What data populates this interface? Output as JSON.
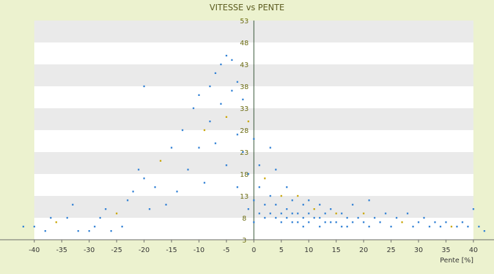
{
  "chart_data": {
    "type": "scatter",
    "title": "VITESSE vs PENTE",
    "xlabel": "Pente [%]",
    "ylabel": "",
    "xlim": [
      -40,
      40
    ],
    "ylim": [
      3,
      53
    ],
    "xticks": [
      -40,
      -35,
      -30,
      -25,
      -20,
      -15,
      -10,
      -5,
      0,
      5,
      10,
      15,
      20,
      25,
      30,
      35,
      40
    ],
    "yticks": [
      3,
      8,
      13,
      18,
      23,
      28,
      33,
      38,
      43,
      48,
      53
    ],
    "grid": "alternating horizontal bands",
    "colors": {
      "background": "#ecf2cf",
      "band": "#eaeaea",
      "plot": "#ffffff",
      "point": "#2e7fd4",
      "point_alt": "#c8a400"
    },
    "series": [
      {
        "points": [
          [
            -42,
            6
          ],
          [
            -40,
            6
          ],
          [
            -38,
            5
          ],
          [
            -37,
            8
          ],
          [
            -36,
            7
          ],
          [
            -34,
            8
          ],
          [
            -33,
            11
          ],
          [
            -32,
            5
          ],
          [
            -30,
            5
          ],
          [
            -29,
            6
          ],
          [
            -28,
            8
          ],
          [
            -27,
            10
          ],
          [
            -26,
            5
          ],
          [
            -25,
            9
          ],
          [
            -24,
            6
          ],
          [
            -23,
            12
          ],
          [
            -22,
            14
          ],
          [
            -21,
            19
          ],
          [
            -20,
            38
          ],
          [
            -20,
            17
          ],
          [
            -19,
            10
          ],
          [
            -18,
            15
          ],
          [
            -17,
            21
          ],
          [
            -16,
            11
          ],
          [
            -15,
            24
          ],
          [
            -14,
            14
          ],
          [
            -13,
            28
          ],
          [
            -12,
            19
          ],
          [
            -11,
            33
          ],
          [
            -10,
            24
          ],
          [
            -10,
            36
          ],
          [
            -9,
            28
          ],
          [
            -9,
            16
          ],
          [
            -8,
            38
          ],
          [
            -8,
            30
          ],
          [
            -7,
            41
          ],
          [
            -7,
            25
          ],
          [
            -6,
            43
          ],
          [
            -6,
            34
          ],
          [
            -5,
            45
          ],
          [
            -5,
            31
          ],
          [
            -5,
            20
          ],
          [
            -4,
            44
          ],
          [
            -4,
            37
          ],
          [
            -3,
            39
          ],
          [
            -3,
            27
          ],
          [
            -3,
            15
          ],
          [
            -2,
            35
          ],
          [
            -2,
            23
          ],
          [
            -1,
            30
          ],
          [
            -1,
            18
          ],
          [
            -1,
            10
          ],
          [
            0,
            26
          ],
          [
            0,
            12
          ],
          [
            0,
            7
          ],
          [
            1,
            20
          ],
          [
            1,
            15
          ],
          [
            1,
            9
          ],
          [
            2,
            17
          ],
          [
            2,
            11
          ],
          [
            2,
            8
          ],
          [
            3,
            24
          ],
          [
            3,
            13
          ],
          [
            3,
            9
          ],
          [
            4,
            19
          ],
          [
            4,
            11
          ],
          [
            4,
            8
          ],
          [
            5,
            13
          ],
          [
            5,
            9
          ],
          [
            5,
            7
          ],
          [
            6,
            15
          ],
          [
            6,
            10
          ],
          [
            6,
            8
          ],
          [
            7,
            12
          ],
          [
            7,
            9
          ],
          [
            7,
            7
          ],
          [
            8,
            13
          ],
          [
            8,
            9
          ],
          [
            8,
            7
          ],
          [
            9,
            11
          ],
          [
            9,
            8
          ],
          [
            9,
            6
          ],
          [
            10,
            12
          ],
          [
            10,
            9
          ],
          [
            10,
            7
          ],
          [
            11,
            10
          ],
          [
            11,
            8
          ],
          [
            12,
            11
          ],
          [
            12,
            8
          ],
          [
            12,
            6
          ],
          [
            13,
            9
          ],
          [
            13,
            7
          ],
          [
            14,
            10
          ],
          [
            14,
            7
          ],
          [
            15,
            9
          ],
          [
            15,
            7
          ],
          [
            16,
            9
          ],
          [
            16,
            6
          ],
          [
            17,
            8
          ],
          [
            17,
            6
          ],
          [
            18,
            11
          ],
          [
            18,
            7
          ],
          [
            19,
            8
          ],
          [
            20,
            9
          ],
          [
            20,
            7
          ],
          [
            21,
            12
          ],
          [
            21,
            6
          ],
          [
            22,
            8
          ],
          [
            23,
            7
          ],
          [
            24,
            9
          ],
          [
            25,
            6
          ],
          [
            26,
            8
          ],
          [
            27,
            7
          ],
          [
            28,
            9
          ],
          [
            29,
            6
          ],
          [
            30,
            7
          ],
          [
            31,
            8
          ],
          [
            32,
            6
          ],
          [
            33,
            7
          ],
          [
            34,
            6
          ],
          [
            35,
            7
          ],
          [
            36,
            6
          ],
          [
            37,
            6
          ],
          [
            38,
            7
          ],
          [
            39,
            6
          ],
          [
            40,
            10
          ],
          [
            41,
            6
          ],
          [
            42,
            5
          ]
        ]
      }
    ]
  }
}
